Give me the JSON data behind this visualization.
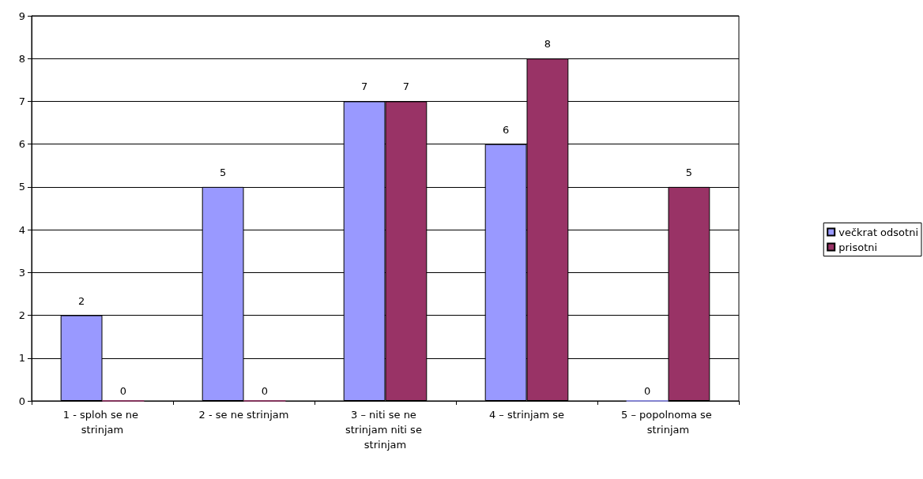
{
  "chart_data": {
    "type": "bar",
    "categories": [
      "1 - sploh se ne strinjam",
      "2 - se ne strinjam",
      "3 – niti se ne strinjam niti se strinjam",
      "4 – strinjam se",
      "5 – popolnoma se strinjam"
    ],
    "series": [
      {
        "name": "večkrat odsotni",
        "color": "#9999ff",
        "values": [
          2,
          5,
          7,
          6,
          0
        ]
      },
      {
        "name": "prisotni",
        "color": "#993366",
        "values": [
          0,
          0,
          7,
          8,
          5
        ]
      }
    ],
    "ylim": [
      0,
      9
    ],
    "yticks": [
      0,
      1,
      2,
      3,
      4,
      5,
      6,
      7,
      8,
      9
    ],
    "grid": "y",
    "legend": "right",
    "data_labels": true
  }
}
